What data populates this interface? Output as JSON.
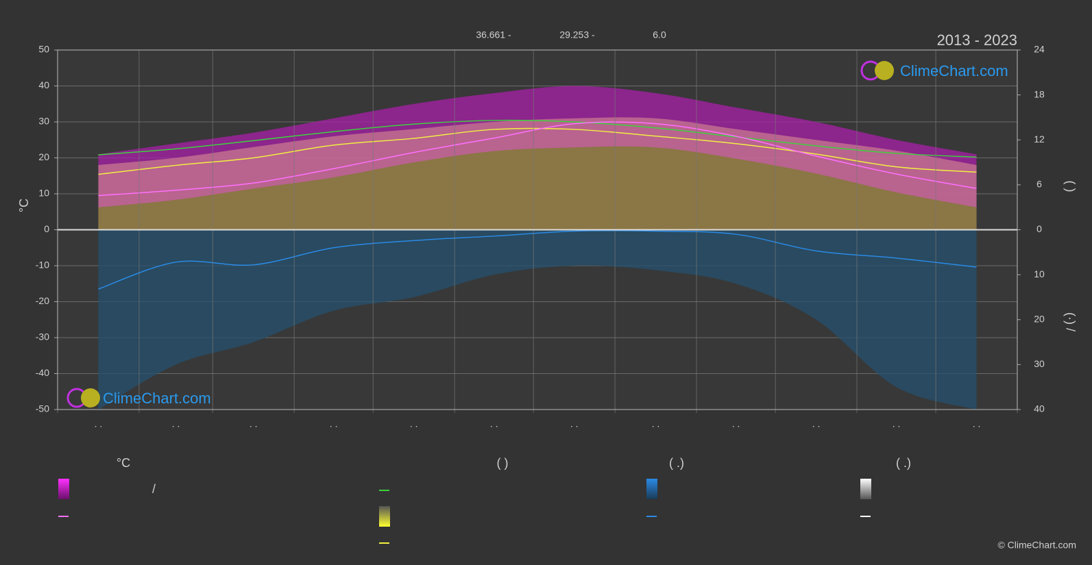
{
  "chart_data": {
    "type": "climate",
    "title": "2013 - 2023",
    "annotations": [
      "36.661 -",
      "29.253 -",
      "6.0"
    ],
    "ylabel": "°C",
    "y2label": "(    )",
    "y3label": "(·)    /",
    "categories": [
      ". .",
      ". .",
      ". .",
      ". .",
      ". .",
      ". .",
      ". .",
      ". .",
      ". .",
      ". .",
      ". .",
      ". ."
    ],
    "ylim": [
      -50,
      50
    ],
    "yticks": [
      -50,
      -40,
      -30,
      -20,
      -10,
      0,
      10,
      20,
      30,
      40,
      50
    ],
    "y2lim": [
      0,
      24
    ],
    "y2ticks": [
      0,
      6,
      12,
      18,
      24
    ],
    "y3lim": [
      0,
      40
    ],
    "y3ticks": [
      0,
      10,
      20,
      30,
      40
    ],
    "grid": true,
    "series": [
      {
        "style": "area",
        "color": "#a81fa8",
        "values": [
          21,
          24,
          27,
          31,
          35,
          38,
          40,
          38,
          34,
          30,
          25,
          21
        ]
      },
      {
        "style": "area",
        "color": "#c87890",
        "values": [
          18,
          20,
          23,
          26,
          28,
          30,
          31,
          31,
          28,
          25,
          22,
          18
        ]
      },
      {
        "style": "area",
        "axis": "y2",
        "color": "#7c7c2c",
        "values": [
          3,
          4,
          5.5,
          7,
          9,
          10.5,
          11,
          11,
          9.5,
          7.5,
          5,
          3
        ]
      },
      {
        "style": "area",
        "axis": "y3",
        "color": "#24506e",
        "values": [
          40,
          30,
          25,
          18,
          15,
          10,
          8,
          9,
          12,
          20,
          35,
          40
        ]
      },
      {
        "style": "line",
        "axis": "y2",
        "color": "#3cd23c",
        "values": [
          10.0,
          10.8,
          11.9,
          13.1,
          14.1,
          14.6,
          14.4,
          13.6,
          12.4,
          11.2,
          10.2,
          9.7
        ]
      },
      {
        "style": "line",
        "axis": "y2",
        "color": "#f0f040",
        "values": [
          7.4,
          8.6,
          9.6,
          11.3,
          12.2,
          13.4,
          13.4,
          12.5,
          11.5,
          10.1,
          8.4,
          7.7
        ]
      },
      {
        "style": "line",
        "color": "#ff70ff",
        "values": [
          9.5,
          11,
          13,
          17,
          21.5,
          25.5,
          29.5,
          29.5,
          26,
          20.5,
          15.5,
          11.5
        ]
      },
      {
        "style": "line",
        "axis": "y3",
        "color": "#2a8ae6",
        "values": [
          13.2,
          7.2,
          7.8,
          4.0,
          2.4,
          1.4,
          0.3,
          0.3,
          1.0,
          4.7,
          6.3,
          8.3
        ]
      }
    ],
    "legend_headers": [
      "°C",
      "(          )",
      "(   .)",
      "(   .)"
    ],
    "legend_text": "/",
    "logo": "ClimeChart.com",
    "copyright": "© ClimeChart.com"
  }
}
